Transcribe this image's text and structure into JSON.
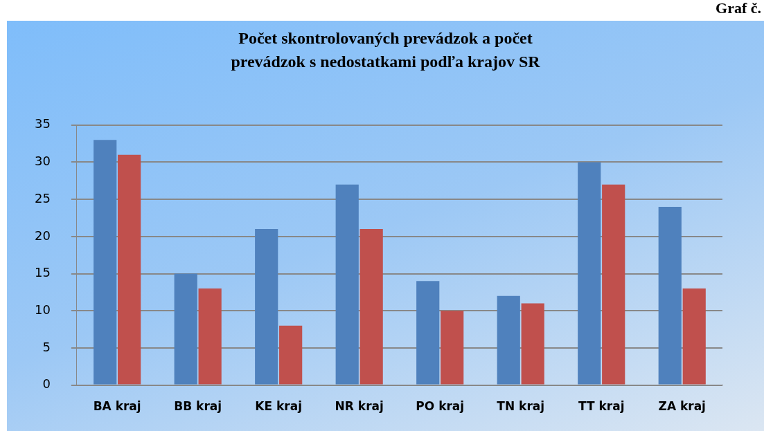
{
  "chart_data": {
    "type": "bar",
    "title": "Počet skontrolovaných prevádzok a počet prevádzok s nedostatkami podľa krajov SR",
    "categories": [
      "BA kraj",
      "BB kraj",
      "KE kraj",
      "NR kraj",
      "PO kraj",
      "TN kraj",
      "TT kraj",
      "ZA kraj"
    ],
    "series": [
      {
        "color": "#4f81bd",
        "values": [
          33,
          15,
          21,
          27,
          14,
          12,
          30,
          24
        ]
      },
      {
        "color": "#c0504d",
        "values": [
          31,
          13,
          8,
          21,
          10,
          11,
          27,
          13
        ]
      }
    ],
    "ylim": [
      0,
      35
    ],
    "yticks": [
      0,
      5,
      10,
      15,
      20,
      25,
      30,
      35
    ],
    "grid": "y",
    "legend": false,
    "annotations": [
      "Graf č."
    ]
  }
}
